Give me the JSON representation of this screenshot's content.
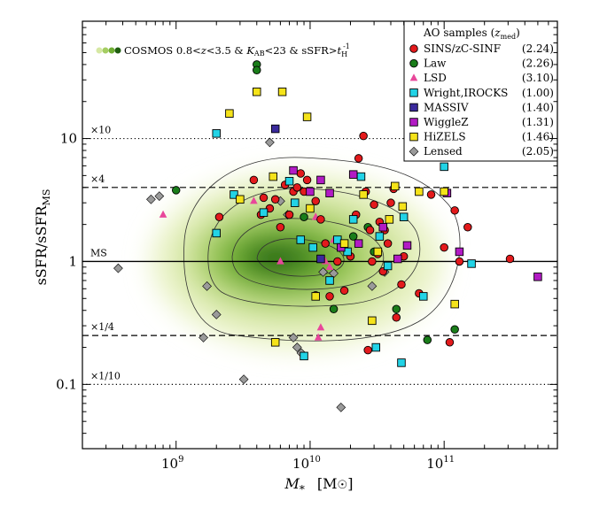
{
  "chart_data": {
    "type": "scatter",
    "xscale": "log",
    "yscale": "log",
    "xlim": [
      200000000.0,
      700000000000.0
    ],
    "ylim": [
      0.03,
      90
    ],
    "xlabel": "M",
    "xlabel_sub": "*",
    "xlabel_unit": "[M",
    "xlabel_unit_end": "]",
    "ylabel": "sSFR/sSFR",
    "ylabel_sub": "MS",
    "xticks": [
      {
        "value": 1000000000.0,
        "base": "10",
        "exp": "9"
      },
      {
        "value": 10000000000.0,
        "base": "10",
        "exp": "10"
      },
      {
        "value": 100000000000.0,
        "base": "10",
        "exp": "11"
      }
    ],
    "yticks": [
      {
        "value": 0.1,
        "label": "0.1"
      },
      {
        "value": 1,
        "label": "1"
      },
      {
        "value": 10,
        "label": "10"
      }
    ],
    "reference_lines": [
      {
        "value": 10,
        "style": "dotted",
        "label": "×10"
      },
      {
        "value": 4,
        "style": "dashed",
        "label": "×4"
      },
      {
        "value": 1,
        "style": "solid",
        "label": "MS"
      },
      {
        "value": 0.25,
        "style": "dashed",
        "label": "×1/4"
      },
      {
        "value": 0.1,
        "style": "dotted",
        "label": "×1/10"
      }
    ],
    "background_legend": {
      "label_parts": [
        "COSMOS 0.8<",
        "z",
        "<3.5 & ",
        "K",
        "AB",
        "<23 & sSFR>",
        "t",
        "H",
        "-1"
      ]
    },
    "legend_title": {
      "text": "AO samples (",
      "var": "z",
      "sub": "med",
      "close": ")"
    },
    "series": [
      {
        "name": "SINS/zC-SINF",
        "zmed": "(2.24)",
        "marker": "circle",
        "color": "#e31a1c",
        "points": [
          [
            2100000000.0,
            2.3
          ],
          [
            3800000000.0,
            4.6
          ],
          [
            4300000000.0,
            2.4
          ],
          [
            4500000000.0,
            3.3
          ],
          [
            5000000000.0,
            2.7
          ],
          [
            5500000000.0,
            3.2
          ],
          [
            6000000000.0,
            1.9
          ],
          [
            6500000000.0,
            4.2
          ],
          [
            7000000000.0,
            2.4
          ],
          [
            7500000000.0,
            3.7
          ],
          [
            8000000000.0,
            4.0
          ],
          [
            8500000000.0,
            5.2
          ],
          [
            9000000000.0,
            3.7
          ],
          [
            9500000000.0,
            4.6
          ],
          [
            11000000000.0,
            3.1
          ],
          [
            12000000000.0,
            2.2
          ],
          [
            13000000000.0,
            1.4
          ],
          [
            14000000000.0,
            0.52
          ],
          [
            11000000000.0,
            0.53
          ],
          [
            16000000000.0,
            1.0
          ],
          [
            18000000000.0,
            0.58
          ],
          [
            20000000000.0,
            1.1
          ],
          [
            22000000000.0,
            2.4
          ],
          [
            23000000000.0,
            6.9
          ],
          [
            25000000000.0,
            10.5
          ],
          [
            26000000000.0,
            3.7
          ],
          [
            28000000000.0,
            1.8
          ],
          [
            29000000000.0,
            1.0
          ],
          [
            32000000000.0,
            1.15
          ],
          [
            35000000000.0,
            0.83
          ],
          [
            38000000000.0,
            1.4
          ],
          [
            40000000000.0,
            3.0
          ],
          [
            42000000000.0,
            3.9
          ],
          [
            44000000000.0,
            0.35
          ],
          [
            48000000000.0,
            0.65
          ],
          [
            50000000000.0,
            1.1
          ],
          [
            65000000000.0,
            0.55
          ],
          [
            80000000000.0,
            3.5
          ],
          [
            100000000000.0,
            1.3
          ],
          [
            110000000000.0,
            0.22
          ],
          [
            120000000000.0,
            2.6
          ],
          [
            130000000000.0,
            1.0
          ],
          [
            150000000000.0,
            1.9
          ],
          [
            310000000000.0,
            1.05
          ],
          [
            30000000000.0,
            2.9
          ],
          [
            27000000000.0,
            0.19
          ],
          [
            36000000000.0,
            1.8
          ],
          [
            33000000000.0,
            2.1
          ]
        ]
      },
      {
        "name": "Law",
        "zmed": "(2.26)",
        "marker": "circle",
        "color": "#1a7d1a",
        "points": [
          [
            1000000000.0,
            3.8
          ],
          [
            4000000000.0,
            40
          ],
          [
            4000000000.0,
            36
          ],
          [
            9000000000.0,
            2.3
          ],
          [
            15000000000.0,
            0.41
          ],
          [
            21000000000.0,
            1.6
          ],
          [
            30000000000.0,
            1.2
          ],
          [
            44000000000.0,
            0.41
          ],
          [
            75000000000.0,
            0.23
          ],
          [
            120000000000.0,
            0.28
          ],
          [
            27000000000.0,
            1.9
          ]
        ]
      },
      {
        "name": "LSD",
        "zmed": "(3.10)",
        "marker": "triangle",
        "color": "#e8479a",
        "points": [
          [
            800000000.0,
            2.4
          ],
          [
            3800000000.0,
            3.1
          ],
          [
            6000000000.0,
            1.0
          ],
          [
            11000000000.0,
            2.3
          ],
          [
            12000000000.0,
            0.29
          ],
          [
            11500000000.0,
            0.24
          ],
          [
            13000000000.0,
            1.0
          ],
          [
            14000000000.0,
            0.9
          ],
          [
            15000000000.0,
            1.5
          ]
        ]
      },
      {
        "name": "Wright,IROCKS",
        "zmed": "(1.00)",
        "marker": "square",
        "color": "#22d3e6",
        "points": [
          [
            2000000000.0,
            11
          ],
          [
            2000000000.0,
            1.7
          ],
          [
            2700000000.0,
            3.5
          ],
          [
            4500000000.0,
            2.5
          ],
          [
            7000000000.0,
            4.5
          ],
          [
            7700000000.0,
            3.0
          ],
          [
            8500000000.0,
            1.5
          ],
          [
            9000000000.0,
            0.17
          ],
          [
            10500000000.0,
            1.3
          ],
          [
            14000000000.0,
            0.7
          ],
          [
            16000000000.0,
            1.5
          ],
          [
            19000000000.0,
            1.2
          ],
          [
            21000000000.0,
            2.2
          ],
          [
            24000000000.0,
            4.9
          ],
          [
            31000000000.0,
            0.2
          ],
          [
            33000000000.0,
            1.6
          ],
          [
            38000000000.0,
            0.92
          ],
          [
            48000000000.0,
            0.15
          ],
          [
            50000000000.0,
            2.3
          ],
          [
            70000000000.0,
            0.52
          ],
          [
            100000000000.0,
            5.9
          ],
          [
            160000000000.0,
            0.96
          ]
        ]
      },
      {
        "name": "MASSIV",
        "zmed": "(1.40)",
        "marker": "square",
        "color": "#3a2a9c",
        "points": [
          [
            5500000000.0,
            12
          ],
          [
            12000000000.0,
            1.05
          ]
        ]
      },
      {
        "name": "WiggleZ",
        "zmed": "(1.31)",
        "marker": "square",
        "color": "#b21bc4",
        "points": [
          [
            7500000000.0,
            5.5
          ],
          [
            10000000000.0,
            3.7
          ],
          [
            12000000000.0,
            4.6
          ],
          [
            14000000000.0,
            3.6
          ],
          [
            17000000000.0,
            1.3
          ],
          [
            21000000000.0,
            5.1
          ],
          [
            23000000000.0,
            1.4
          ],
          [
            35000000000.0,
            1.9
          ],
          [
            45000000000.0,
            1.05
          ],
          [
            53000000000.0,
            1.35
          ],
          [
            105000000000.0,
            3.6
          ],
          [
            130000000000.0,
            1.2
          ],
          [
            500000000000.0,
            0.75
          ]
        ]
      },
      {
        "name": "HiZELS",
        "zmed": "(1.46)",
        "marker": "square",
        "color": "#f5e31a",
        "points": [
          [
            2500000000.0,
            16
          ],
          [
            4000000000.0,
            24
          ],
          [
            6200000000.0,
            24
          ],
          [
            9500000000.0,
            15
          ],
          [
            3000000000.0,
            3.2
          ],
          [
            5300000000.0,
            4.9
          ],
          [
            10000000000.0,
            2.7
          ],
          [
            18000000000.0,
            1.4
          ],
          [
            29000000000.0,
            0.33
          ],
          [
            32000000000.0,
            1.2
          ],
          [
            39000000000.0,
            2.2
          ],
          [
            43000000000.0,
            4.1
          ],
          [
            65000000000.0,
            3.7
          ],
          [
            100000000000.0,
            3.7
          ],
          [
            120000000000.0,
            0.45
          ],
          [
            11000000000.0,
            0.52
          ],
          [
            25000000000.0,
            3.5
          ],
          [
            49000000000.0,
            2.8
          ],
          [
            5500000000.0,
            0.22
          ]
        ]
      },
      {
        "name": "Lensed",
        "zmed": "(2.05)",
        "marker": "diamond",
        "color": "#9a9a9a",
        "points": [
          [
            370000000.0,
            0.88
          ],
          [
            650000000.0,
            3.2
          ],
          [
            750000000.0,
            3.4
          ],
          [
            1700000000.0,
            0.63
          ],
          [
            2000000000.0,
            0.37
          ],
          [
            1600000000.0,
            0.24
          ],
          [
            3200000000.0,
            0.11
          ],
          [
            5000000000.0,
            9.3
          ],
          [
            6000000000.0,
            3.1
          ],
          [
            6800000000.0,
            2.4
          ],
          [
            7500000000.0,
            0.24
          ],
          [
            8000000000.0,
            0.2
          ],
          [
            8600000000.0,
            0.18
          ],
          [
            12500000000.0,
            0.82
          ],
          [
            15000000000.0,
            0.8
          ],
          [
            17000000000.0,
            0.065
          ],
          [
            29000000000.0,
            0.63
          ],
          [
            36000000000.0,
            0.82
          ]
        ]
      }
    ]
  }
}
